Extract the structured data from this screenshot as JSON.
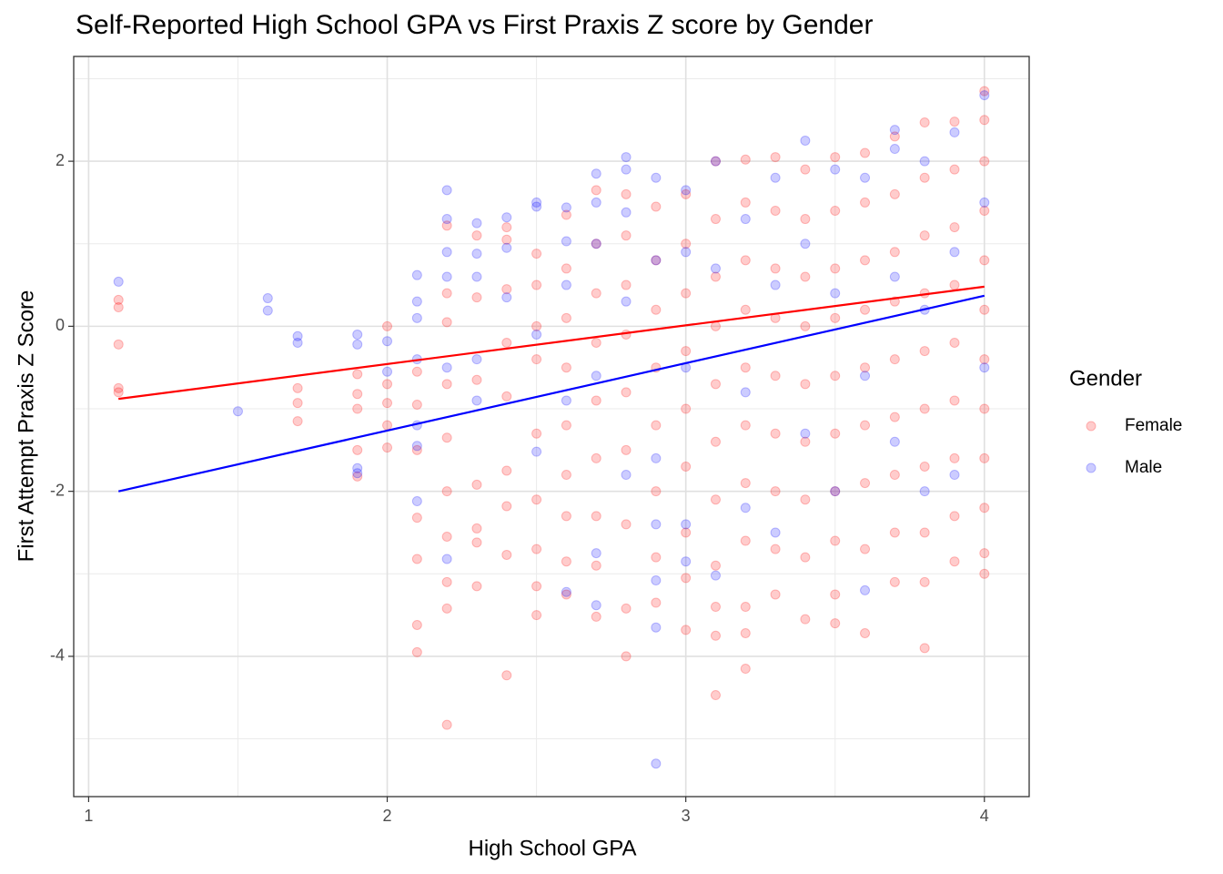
{
  "chart_data": {
    "type": "scatter",
    "title": "Self-Reported High School GPA vs First Praxis Z score by Gender",
    "x_label": "High School GPA",
    "y_label": "First Attempt Praxis Z Score",
    "legend_title": "Gender",
    "legend_position": "right",
    "grid": true,
    "xlim": [
      0.95,
      4.15
    ],
    "ylim": [
      -5.7,
      3.27
    ],
    "xticks": [
      1,
      2,
      3,
      4
    ],
    "yticks": [
      -4,
      -2,
      0,
      2
    ],
    "series": [
      {
        "name": "Female",
        "color": "#ff0000",
        "x": [
          1.1,
          1.1,
          1.1,
          1.1,
          1.1,
          1.7,
          1.7,
          1.7,
          1.9,
          1.9,
          1.9,
          1.9,
          1.9,
          2.0,
          2.0,
          2.0,
          2.0,
          2.0,
          2.1,
          2.1,
          2.1,
          2.1,
          2.1,
          2.1,
          2.1,
          2.2,
          2.2,
          2.2,
          2.2,
          2.2,
          2.2,
          2.2,
          2.2,
          2.2,
          2.2,
          2.3,
          2.3,
          2.3,
          2.3,
          2.3,
          2.3,
          2.3,
          2.4,
          2.4,
          2.4,
          2.4,
          2.4,
          2.4,
          2.4,
          2.4,
          2.4,
          2.5,
          2.5,
          2.5,
          2.5,
          2.5,
          2.5,
          2.5,
          2.5,
          2.5,
          2.6,
          2.6,
          2.6,
          2.6,
          2.6,
          2.6,
          2.6,
          2.6,
          2.6,
          2.7,
          2.7,
          2.7,
          2.7,
          2.7,
          2.7,
          2.7,
          2.7,
          2.7,
          2.8,
          2.8,
          2.8,
          2.8,
          2.8,
          2.8,
          2.8,
          2.8,
          2.8,
          2.9,
          2.9,
          2.9,
          2.9,
          2.9,
          2.9,
          2.9,
          2.9,
          3.0,
          3.0,
          3.0,
          3.0,
          3.0,
          3.0,
          3.0,
          3.0,
          3.0,
          3.1,
          3.1,
          3.1,
          3.1,
          3.1,
          3.1,
          3.1,
          3.1,
          3.1,
          3.1,
          3.1,
          3.2,
          3.2,
          3.2,
          3.2,
          3.2,
          3.2,
          3.2,
          3.2,
          3.2,
          3.2,
          3.2,
          3.3,
          3.3,
          3.3,
          3.3,
          3.3,
          3.3,
          3.3,
          3.3,
          3.3,
          3.4,
          3.4,
          3.4,
          3.4,
          3.4,
          3.4,
          3.4,
          3.4,
          3.4,
          3.5,
          3.5,
          3.5,
          3.5,
          3.5,
          3.5,
          3.5,
          3.5,
          3.5,
          3.5,
          3.6,
          3.6,
          3.6,
          3.6,
          3.6,
          3.6,
          3.6,
          3.6,
          3.6,
          3.7,
          3.7,
          3.7,
          3.7,
          3.7,
          3.7,
          3.7,
          3.7,
          3.7,
          3.8,
          3.8,
          3.8,
          3.8,
          3.8,
          3.8,
          3.8,
          3.8,
          3.8,
          3.8,
          3.9,
          3.9,
          3.9,
          3.9,
          3.9,
          3.9,
          3.9,
          3.9,
          3.9,
          4.0,
          4.0,
          4.0,
          4.0,
          4.0,
          4.0,
          4.0,
          4.0,
          4.0,
          4.0,
          4.0,
          4.0
        ],
        "values": [
          0.32,
          0.23,
          -0.22,
          -0.75,
          -0.8,
          -0.75,
          -0.93,
          -1.15,
          -0.58,
          -0.82,
          -1.0,
          -1.5,
          -1.82,
          0.0,
          -0.7,
          -0.93,
          -1.2,
          -1.47,
          -0.55,
          -0.95,
          -1.5,
          -2.32,
          -2.82,
          -3.62,
          -3.95,
          1.22,
          0.4,
          0.05,
          -0.7,
          -1.35,
          -2.0,
          -2.55,
          -3.1,
          -3.42,
          -4.83,
          1.1,
          0.35,
          -0.65,
          -1.92,
          -2.45,
          -2.62,
          -3.15,
          1.2,
          1.05,
          0.45,
          -0.2,
          -0.85,
          -1.75,
          -2.18,
          -2.77,
          -4.23,
          0.88,
          0.5,
          0.0,
          -0.4,
          -1.3,
          -2.1,
          -2.7,
          -3.15,
          -3.5,
          1.35,
          0.7,
          0.1,
          -0.5,
          -1.2,
          -1.8,
          -2.3,
          -2.85,
          -3.25,
          1.65,
          1.0,
          0.4,
          -0.2,
          -0.9,
          -1.6,
          -2.3,
          -2.9,
          -3.52,
          1.6,
          1.1,
          0.5,
          -0.1,
          -0.8,
          -1.5,
          -2.4,
          -3.42,
          -4.0,
          1.45,
          0.8,
          0.2,
          -0.5,
          -1.2,
          -2.0,
          -2.8,
          -3.35,
          1.6,
          1.0,
          0.4,
          -0.3,
          -1.0,
          -1.7,
          -2.5,
          -3.05,
          -3.68,
          2.0,
          1.3,
          0.6,
          0.0,
          -0.7,
          -1.4,
          -2.1,
          -2.9,
          -3.4,
          -3.75,
          -4.47,
          2.02,
          1.5,
          0.8,
          0.2,
          -0.5,
          -1.2,
          -1.9,
          -2.6,
          -3.4,
          -3.72,
          -4.15,
          2.05,
          1.4,
          0.7,
          0.1,
          -0.6,
          -1.3,
          -2.0,
          -2.7,
          -3.25,
          1.9,
          1.3,
          0.6,
          0.0,
          -0.7,
          -1.4,
          -2.1,
          -2.8,
          -3.55,
          2.05,
          1.4,
          0.7,
          0.1,
          -0.6,
          -1.3,
          -2.0,
          -2.6,
          -3.25,
          -3.6,
          2.1,
          1.5,
          0.8,
          0.2,
          -0.5,
          -1.2,
          -1.9,
          -2.7,
          -3.72,
          2.3,
          1.6,
          0.9,
          0.3,
          -0.4,
          -1.1,
          -1.8,
          -2.5,
          -3.1,
          2.47,
          1.8,
          1.1,
          0.4,
          -0.3,
          -1.0,
          -1.7,
          -2.5,
          -3.1,
          -3.9,
          2.48,
          1.9,
          1.2,
          0.5,
          -0.2,
          -0.9,
          -1.6,
          -2.3,
          -2.85,
          2.85,
          2.5,
          2.0,
          1.4,
          0.8,
          0.2,
          -0.4,
          -1.0,
          -1.6,
          -2.2,
          -2.75,
          -3.0
        ]
      },
      {
        "name": "Male",
        "color": "#0000ff",
        "x": [
          1.1,
          1.5,
          1.6,
          1.6,
          1.7,
          1.7,
          1.9,
          1.9,
          1.9,
          1.9,
          2.0,
          2.0,
          2.1,
          2.1,
          2.1,
          2.1,
          2.1,
          2.1,
          2.1,
          2.2,
          2.2,
          2.2,
          2.2,
          2.2,
          2.2,
          2.3,
          2.3,
          2.3,
          2.3,
          2.3,
          2.4,
          2.4,
          2.4,
          2.5,
          2.5,
          2.5,
          2.5,
          2.6,
          2.6,
          2.6,
          2.6,
          2.6,
          2.7,
          2.7,
          2.7,
          2.7,
          2.7,
          2.7,
          2.8,
          2.8,
          2.8,
          2.8,
          2.8,
          2.9,
          2.9,
          2.9,
          2.9,
          2.9,
          2.9,
          2.9,
          3.0,
          3.0,
          3.0,
          3.0,
          3.0,
          3.1,
          3.1,
          3.1,
          3.2,
          3.2,
          3.2,
          3.3,
          3.3,
          3.3,
          3.4,
          3.4,
          3.4,
          3.5,
          3.5,
          3.5,
          3.6,
          3.6,
          3.6,
          3.7,
          3.7,
          3.7,
          3.7,
          3.8,
          3.8,
          3.8,
          3.9,
          3.9,
          3.9,
          4.0,
          4.0,
          4.0
        ],
        "values": [
          0.54,
          -1.03,
          0.34,
          0.19,
          -0.12,
          -0.2,
          -0.1,
          -0.22,
          -1.72,
          -1.78,
          -0.18,
          -0.55,
          0.62,
          0.3,
          0.1,
          -0.4,
          -1.2,
          -1.45,
          -2.12,
          1.65,
          1.3,
          0.9,
          0.6,
          -0.5,
          -2.82,
          1.25,
          0.88,
          0.6,
          -0.4,
          -0.9,
          1.32,
          0.95,
          0.35,
          1.5,
          1.45,
          -0.1,
          -1.52,
          1.44,
          1.03,
          0.5,
          -0.9,
          -3.22,
          1.85,
          1.5,
          1.0,
          -0.6,
          -2.75,
          -3.38,
          2.05,
          1.9,
          1.38,
          0.3,
          -1.8,
          1.8,
          0.8,
          -1.6,
          -2.4,
          -3.08,
          -3.65,
          -5.3,
          1.65,
          0.9,
          -0.5,
          -2.4,
          -2.85,
          2.0,
          0.7,
          -3.02,
          1.3,
          -0.8,
          -2.2,
          1.8,
          0.5,
          -2.5,
          2.25,
          1.0,
          -1.3,
          1.9,
          0.4,
          -2.0,
          1.8,
          -0.6,
          -3.2,
          2.38,
          2.15,
          0.6,
          -1.4,
          2.0,
          0.2,
          -2.0,
          2.35,
          0.9,
          -1.8,
          2.8,
          1.5,
          -0.5
        ]
      }
    ],
    "fit_lines": [
      {
        "color": "#ff0000",
        "x": [
          1.1,
          4.0
        ],
        "values": [
          -0.88,
          0.48
        ]
      },
      {
        "color": "#0000ff",
        "x": [
          1.1,
          4.0
        ],
        "values": [
          -2.0,
          0.37
        ]
      }
    ]
  }
}
